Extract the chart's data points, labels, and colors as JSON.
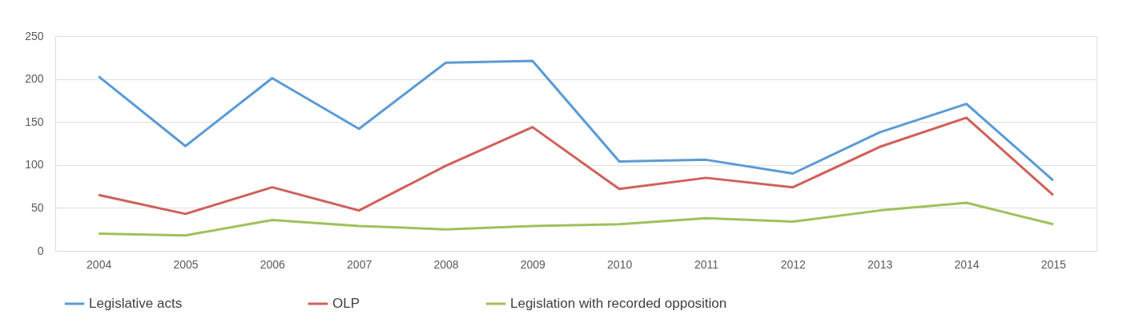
{
  "chart_data": {
    "type": "line",
    "categories": [
      "2004",
      "2005",
      "2006",
      "2007",
      "2008",
      "2009",
      "2010",
      "2011",
      "2012",
      "2013",
      "2014",
      "2015"
    ],
    "series": [
      {
        "name": "Legislative acts",
        "color": "#5b9bd5",
        "values": [
          203,
          122,
          201,
          142,
          219,
          221,
          104,
          106,
          90,
          138,
          171,
          82
        ]
      },
      {
        "name": "OLP",
        "color": "#d0605a",
        "values": [
          65,
          43,
          74,
          47,
          99,
          144,
          72,
          85,
          74,
          121,
          155,
          65
        ]
      },
      {
        "name": "Legislation with recorded opposition",
        "color": "#9dc25a",
        "values": [
          20,
          18,
          36,
          29,
          25,
          29,
          31,
          38,
          34,
          47,
          56,
          31
        ]
      }
    ],
    "ylim": [
      0,
      250
    ],
    "yticks": [
      0,
      50,
      100,
      150,
      200,
      250
    ],
    "grid": "y",
    "legend": "bottom",
    "marker": "none",
    "line_style": "solid"
  }
}
